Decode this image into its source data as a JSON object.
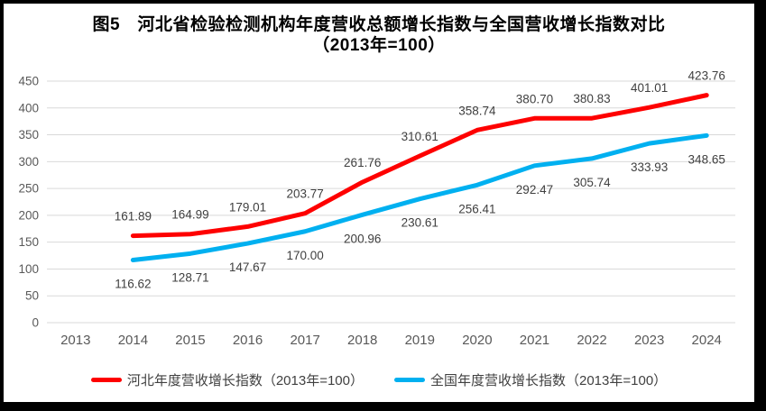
{
  "title": {
    "line1": "图5　河北省检验检测机构年度营收总额增长指数与全国营收增长指数对比",
    "line2": "（2013年=100）"
  },
  "chart_data": {
    "type": "line",
    "categories": [
      "2013",
      "2014",
      "2015",
      "2016",
      "2017",
      "2018",
      "2019",
      "2020",
      "2021",
      "2022",
      "2023",
      "2024"
    ],
    "series": [
      {
        "name": "河北年度营收增长指数（2013年=100）",
        "color": "#FE0000",
        "label_position": "above",
        "values": [
          null,
          "161.89",
          "164.99",
          "179.01",
          "203.77",
          "261.76",
          "310.61",
          "358.74",
          "380.70",
          "380.83",
          "401.01",
          "423.76"
        ]
      },
      {
        "name": "全国年度营收增长指数（2013年=100）",
        "color": "#00B0F0",
        "label_position": "below",
        "values": [
          null,
          "116.62",
          "128.71",
          "147.67",
          "170.00",
          "200.96",
          "230.61",
          "256.41",
          "292.47",
          "305.74",
          "333.93",
          "348.65"
        ]
      }
    ],
    "ylim": [
      0,
      450
    ],
    "ytick_step": 50,
    "yticks": [
      "0",
      "50",
      "100",
      "150",
      "200",
      "250",
      "300",
      "350",
      "400",
      "450"
    ],
    "grid": true,
    "legend_position": "bottom"
  },
  "colors": {
    "gridline": "#D9D9D9",
    "axis_label": "#595959",
    "data_label": "#3F3F3F",
    "title": "#000000",
    "frame_border": "#000000",
    "background": "#FFFFFF"
  }
}
